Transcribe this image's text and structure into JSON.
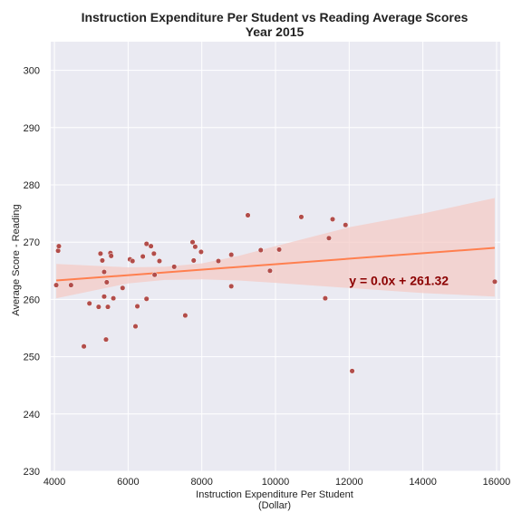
{
  "chart_data": {
    "type": "scatter",
    "title": "Instruction Expenditure Per Student vs Reading Average Scores",
    "subtitle": "Year 2015",
    "xlabel": "Instruction Expenditure Per Student",
    "xlabel_unit": "(Dollar)",
    "ylabel": "Average Score - Reading",
    "xlim": [
      3900,
      16100
    ],
    "ylim": [
      230,
      305
    ],
    "xticks": [
      4000,
      6000,
      8000,
      10000,
      12000,
      14000,
      16000
    ],
    "yticks": [
      230,
      240,
      250,
      260,
      270,
      280,
      290,
      300
    ],
    "grid": true,
    "points": [
      [
        4050,
        262.5
      ],
      [
        4100,
        268.5
      ],
      [
        4120,
        269.3
      ],
      [
        4450,
        262.5
      ],
      [
        4800,
        251.8
      ],
      [
        4950,
        259.3
      ],
      [
        5200,
        258.7
      ],
      [
        5250,
        268.0
      ],
      [
        5300,
        266.8
      ],
      [
        5350,
        260.5
      ],
      [
        5350,
        264.8
      ],
      [
        5400,
        253.0
      ],
      [
        5420,
        263.0
      ],
      [
        5450,
        258.7
      ],
      [
        5520,
        268.1
      ],
      [
        5540,
        267.6
      ],
      [
        5600,
        260.2
      ],
      [
        5850,
        262.0
      ],
      [
        6050,
        267.0
      ],
      [
        6120,
        266.7
      ],
      [
        6200,
        255.3
      ],
      [
        6250,
        258.8
      ],
      [
        6400,
        267.5
      ],
      [
        6500,
        260.1
      ],
      [
        6500,
        269.7
      ],
      [
        6620,
        269.3
      ],
      [
        6700,
        268.0
      ],
      [
        6720,
        264.3
      ],
      [
        6850,
        266.7
      ],
      [
        7250,
        265.7
      ],
      [
        7550,
        257.2
      ],
      [
        7750,
        270.0
      ],
      [
        7780,
        266.8
      ],
      [
        7820,
        269.2
      ],
      [
        7980,
        268.3
      ],
      [
        8450,
        266.7
      ],
      [
        8800,
        262.3
      ],
      [
        8800,
        267.8
      ],
      [
        9250,
        274.7
      ],
      [
        9600,
        268.6
      ],
      [
        9850,
        265.0
      ],
      [
        10100,
        268.7
      ],
      [
        10700,
        274.4
      ],
      [
        11350,
        260.2
      ],
      [
        11450,
        270.7
      ],
      [
        11550,
        274.0
      ],
      [
        11900,
        273.0
      ],
      [
        12080,
        247.5
      ],
      [
        15950,
        263.1
      ]
    ],
    "regression": {
      "label": "y = 0.0x + 261.32",
      "x": [
        4050,
        15950
      ],
      "y": [
        263.3,
        269.0
      ],
      "ci_upper": [
        [
          4050,
          266.2
        ],
        [
          6000,
          265.6
        ],
        [
          7000,
          265.7
        ],
        [
          8000,
          266.3
        ],
        [
          9000,
          267.6
        ],
        [
          10000,
          269.3
        ],
        [
          12000,
          272.6
        ],
        [
          14000,
          275.0
        ],
        [
          15950,
          277.7
        ]
      ],
      "ci_lower": [
        [
          4050,
          260.2
        ],
        [
          6000,
          262.8
        ],
        [
          7000,
          263.4
        ],
        [
          8000,
          263.5
        ],
        [
          9000,
          263.3
        ],
        [
          10000,
          262.9
        ],
        [
          12000,
          262.0
        ],
        [
          14000,
          261.1
        ],
        [
          15950,
          260.5
        ]
      ],
      "equation_position": [
        12000,
        263.3
      ]
    },
    "colors": {
      "background": "#eaeaf2",
      "grid": "#ffffff",
      "point": "#b24d4a",
      "line": "#ff7f4f",
      "band": "#f4cbc5",
      "equation": "#8b0000"
    }
  }
}
